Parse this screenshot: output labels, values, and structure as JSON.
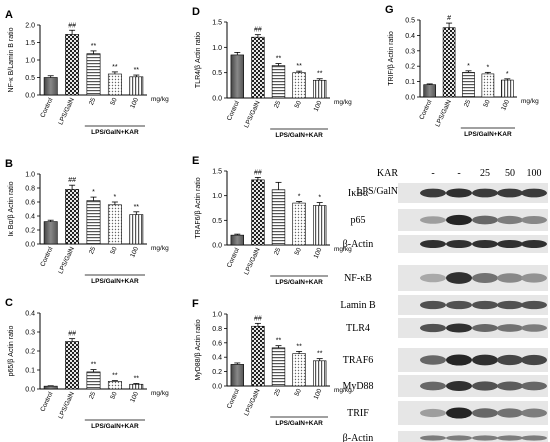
{
  "chart_data": [
    {
      "panel": "A",
      "type": "bar",
      "ylabel": "NF-κ B/Lamin B ratio",
      "categories": [
        "Control",
        "LPS/GalN",
        "25",
        "50",
        "100"
      ],
      "values": [
        0.5,
        1.73,
        1.18,
        0.6,
        0.52
      ],
      "errors": [
        0.05,
        0.12,
        0.08,
        0.06,
        0.05
      ],
      "sig": [
        "",
        "##",
        "**",
        "**",
        "**"
      ],
      "ylim": [
        0,
        2.0
      ],
      "yticks": [
        0.0,
        0.5,
        1.0,
        1.5,
        2.0
      ],
      "tickfmt": 1,
      "unit": "mg/kg",
      "group_label": "LPS/GalN+KAR"
    },
    {
      "panel": "B",
      "type": "bar",
      "ylabel": "Iκ Bα/β Actin ratio",
      "categories": [
        "Control",
        "LPS/GalN",
        "25",
        "50",
        "100"
      ],
      "values": [
        0.32,
        0.78,
        0.62,
        0.56,
        0.42
      ],
      "errors": [
        0.02,
        0.06,
        0.05,
        0.04,
        0.04
      ],
      "sig": [
        "",
        "##",
        "*",
        "*",
        "**"
      ],
      "ylim": [
        0,
        1.0
      ],
      "yticks": [
        0.0,
        0.2,
        0.4,
        0.6,
        0.8,
        1.0
      ],
      "tickfmt": 1,
      "unit": "mg/kg",
      "group_label": "LPS/GalN+KAR"
    },
    {
      "panel": "C",
      "type": "bar",
      "ylabel": "p65/β Actin ratio",
      "categories": [
        "Control",
        "LPS/GalN",
        "25",
        "50",
        "100"
      ],
      "values": [
        0.015,
        0.25,
        0.09,
        0.04,
        0.025
      ],
      "errors": [
        0.002,
        0.015,
        0.012,
        0.004,
        0.004
      ],
      "sig": [
        "",
        "##",
        "**",
        "**",
        "**"
      ],
      "ylim": [
        0,
        0.4
      ],
      "yticks": [
        0.0,
        0.1,
        0.2,
        0.3,
        0.4
      ],
      "tickfmt": 1,
      "unit": "mg/kg",
      "group_label": "LPS/GalN+KAR"
    },
    {
      "panel": "D",
      "type": "bar",
      "ylabel": "TLR4/β Actin ratio",
      "categories": [
        "Control",
        "LPS/GalN",
        "25",
        "50",
        "100"
      ],
      "values": [
        0.85,
        1.2,
        0.64,
        0.5,
        0.35
      ],
      "errors": [
        0.05,
        0.05,
        0.04,
        0.03,
        0.03
      ],
      "sig": [
        "",
        "##",
        "**",
        "**",
        "**"
      ],
      "ylim": [
        0,
        1.5
      ],
      "yticks": [
        0.0,
        0.5,
        1.0,
        1.5
      ],
      "tickfmt": 1,
      "unit": "mg/kg",
      "group_label": "LPS/GalN+KAR"
    },
    {
      "panel": "E",
      "type": "bar",
      "ylabel": "TRAF6/β Actin ratio",
      "categories": [
        "Control",
        "LPS/GalN",
        "25",
        "50",
        "100"
      ],
      "values": [
        0.2,
        1.32,
        1.12,
        0.85,
        0.8
      ],
      "errors": [
        0.02,
        0.05,
        0.15,
        0.03,
        0.06
      ],
      "sig": [
        "",
        "##",
        "",
        "*",
        "*"
      ],
      "ylim": [
        0,
        1.5
      ],
      "yticks": [
        0.0,
        0.5,
        1.0,
        1.5
      ],
      "tickfmt": 1,
      "unit": "mg/kg",
      "group_label": "LPS/GalN+KAR"
    },
    {
      "panel": "F",
      "type": "bar",
      "ylabel": "MyD88/β Actin ratio",
      "categories": [
        "Control",
        "LPS/GalN",
        "25",
        "50",
        "100"
      ],
      "values": [
        0.3,
        0.83,
        0.53,
        0.45,
        0.35
      ],
      "errors": [
        0.02,
        0.04,
        0.03,
        0.03,
        0.03
      ],
      "sig": [
        "",
        "##",
        "**",
        "**",
        "**"
      ],
      "ylim": [
        0,
        1.0
      ],
      "yticks": [
        0.0,
        0.2,
        0.4,
        0.6,
        0.8,
        1.0
      ],
      "tickfmt": 1,
      "unit": "mg/kg",
      "group_label": "LPS/GalN+KAR"
    },
    {
      "panel": "G",
      "type": "bar",
      "ylabel": "TRIF/β Actin ratio",
      "categories": [
        "Control",
        "LPS/GalN",
        "25",
        "50",
        "100"
      ],
      "values": [
        0.08,
        0.45,
        0.16,
        0.15,
        0.11
      ],
      "errors": [
        0.005,
        0.03,
        0.01,
        0.01,
        0.008
      ],
      "sig": [
        "",
        "#",
        "*",
        "*",
        "*"
      ],
      "ylim": [
        0,
        0.5
      ],
      "yticks": [
        0.0,
        0.1,
        0.2,
        0.3,
        0.4,
        0.5
      ],
      "tickfmt": 1,
      "unit": "mg/kg",
      "group_label": "LPS/GalN+KAR"
    }
  ],
  "blot": {
    "header": [
      {
        "label": "KAR",
        "values": [
          "-",
          "-",
          "25",
          "50",
          "100"
        ]
      },
      {
        "label": "LPS/GalN",
        "values": [
          "-",
          "+",
          "+",
          "+",
          "+"
        ]
      }
    ],
    "rows": [
      {
        "label": "IκBα",
        "intensity": [
          0.8,
          0.85,
          0.8,
          0.8,
          0.8
        ]
      },
      {
        "label": "p65",
        "intensity": [
          0.35,
          0.9,
          0.6,
          0.5,
          0.45
        ]
      },
      {
        "label": "β-Actin",
        "intensity": [
          0.85,
          0.85,
          0.85,
          0.85,
          0.85
        ]
      },
      {
        "label": "NF-κB",
        "intensity": [
          0.3,
          0.85,
          0.55,
          0.45,
          0.4
        ]
      },
      {
        "label": "Lamin B",
        "intensity": [
          0.7,
          0.7,
          0.7,
          0.7,
          0.7
        ]
      },
      {
        "label": "TLR4",
        "intensity": [
          0.7,
          0.85,
          0.6,
          0.55,
          0.5
        ]
      },
      {
        "label": "TRAF6",
        "intensity": [
          0.6,
          0.9,
          0.85,
          0.75,
          0.75
        ]
      },
      {
        "label": "MyD88",
        "intensity": [
          0.6,
          0.85,
          0.7,
          0.65,
          0.6
        ]
      },
      {
        "label": "TRIF",
        "intensity": [
          0.35,
          0.9,
          0.6,
          0.55,
          0.5
        ]
      },
      {
        "label": "β-Actin",
        "intensity": [
          0.5,
          0.5,
          0.5,
          0.5,
          0.5
        ]
      }
    ]
  }
}
